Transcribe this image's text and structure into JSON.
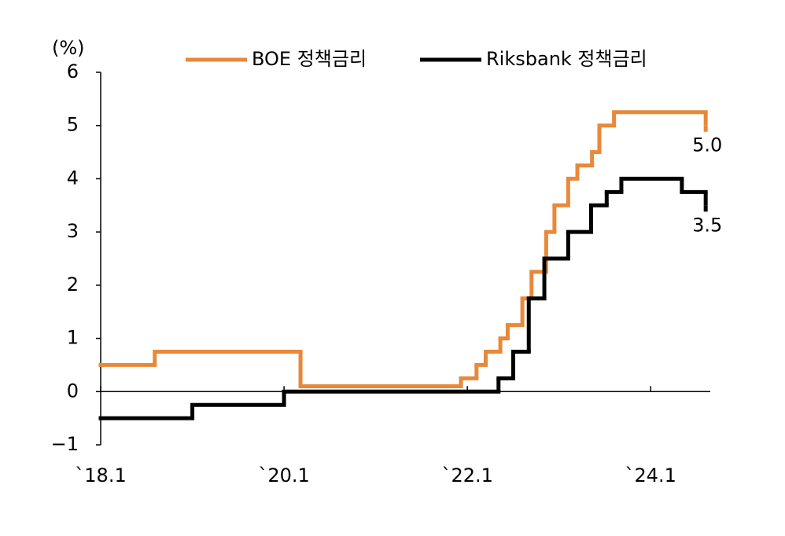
{
  "chart_data": {
    "type": "step-line",
    "y_unit_label": "(%)",
    "step": "post",
    "xlim": [
      2018.0,
      2024.65
    ],
    "xticks": [
      {
        "value": 2018.0,
        "label": "`18.1"
      },
      {
        "value": 2020.0,
        "label": "`20.1"
      },
      {
        "value": 2022.0,
        "label": "`22.1"
      },
      {
        "value": 2024.0,
        "label": "`24.1"
      }
    ],
    "ylim": [
      -1,
      6
    ],
    "yticks": [
      {
        "value": -1,
        "label": "−1"
      },
      0,
      1,
      2,
      3,
      4,
      5,
      6
    ],
    "legend": "top",
    "series": [
      {
        "name": "BOE 정책금리",
        "color": "#e8893a",
        "x": [
          2018.0,
          2018.59,
          2020.18,
          2021.93,
          2022.1,
          2022.2,
          2022.36,
          2022.44,
          2022.6,
          2022.7,
          2022.86,
          2022.95,
          2023.1,
          2023.2,
          2023.36,
          2023.44,
          2023.6,
          2024.6
        ],
        "values": [
          0.5,
          0.75,
          0.1,
          0.25,
          0.5,
          0.75,
          1.0,
          1.25,
          1.75,
          2.25,
          3.0,
          3.5,
          4.0,
          4.25,
          4.5,
          5.0,
          5.25,
          5.0
        ]
      },
      {
        "name": "Riksbank 정책금리",
        "color": "#000000",
        "x": [
          2018.0,
          2019.0,
          2020.0,
          2022.34,
          2022.5,
          2022.67,
          2022.84,
          2023.1,
          2023.35,
          2023.52,
          2023.68,
          2024.34,
          2024.6
        ],
        "values": [
          -0.5,
          -0.25,
          0,
          0.25,
          0.75,
          1.75,
          2.5,
          3.0,
          3.5,
          3.75,
          4.0,
          3.75,
          3.5
        ]
      }
    ],
    "annotations": [
      {
        "text": "5.0",
        "series": 0
      },
      {
        "text": "3.5",
        "series": 1
      }
    ]
  }
}
